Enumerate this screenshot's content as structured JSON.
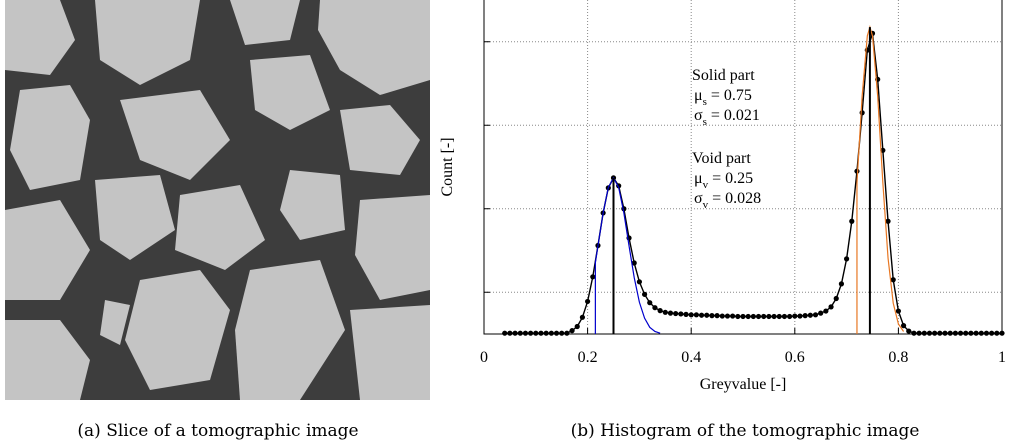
{
  "image_panel": {
    "caption": "(a) Slice of a tomographic image"
  },
  "chart_data": {
    "type": "histogram-fit",
    "caption": "(b) Histogram of the tomographic image",
    "xlabel": "Greyvalue [-]",
    "ylabel": "Count [-]",
    "xlim": [
      0,
      1
    ],
    "xticks": [
      0,
      0.2,
      0.4,
      0.6,
      0.8,
      1
    ],
    "ylim": [
      0,
      8
    ],
    "yticks": [
      1,
      3,
      5,
      7
    ],
    "grid": true,
    "series": [
      {
        "color": "#000000",
        "style": "line-dots",
        "x": [
          0.04,
          0.05,
          0.06,
          0.07,
          0.08,
          0.09,
          0.1,
          0.11,
          0.12,
          0.13,
          0.14,
          0.15,
          0.16,
          0.17,
          0.18,
          0.19,
          0.2,
          0.21,
          0.22,
          0.23,
          0.24,
          0.25,
          0.26,
          0.27,
          0.28,
          0.29,
          0.3,
          0.31,
          0.32,
          0.33,
          0.34,
          0.35,
          0.36,
          0.37,
          0.38,
          0.39,
          0.4,
          0.41,
          0.42,
          0.43,
          0.44,
          0.45,
          0.46,
          0.47,
          0.48,
          0.49,
          0.5,
          0.51,
          0.52,
          0.53,
          0.54,
          0.55,
          0.56,
          0.57,
          0.58,
          0.59,
          0.6,
          0.61,
          0.62,
          0.63,
          0.64,
          0.65,
          0.66,
          0.67,
          0.68,
          0.69,
          0.7,
          0.71,
          0.72,
          0.73,
          0.74,
          0.75,
          0.76,
          0.77,
          0.78,
          0.79,
          0.8,
          0.81,
          0.82,
          0.83,
          0.84,
          0.85,
          0.86,
          0.87,
          0.88,
          0.89,
          0.9,
          0.91,
          0.92,
          0.93,
          0.94,
          0.95,
          0.96,
          0.97,
          0.98,
          0.99,
          1.0
        ],
        "values": [
          0.02,
          0.02,
          0.02,
          0.02,
          0.02,
          0.02,
          0.02,
          0.02,
          0.02,
          0.02,
          0.02,
          0.02,
          0.02,
          0.08,
          0.18,
          0.4,
          0.78,
          1.37,
          2.12,
          2.9,
          3.5,
          3.74,
          3.55,
          3.0,
          2.3,
          1.7,
          1.25,
          0.95,
          0.75,
          0.63,
          0.56,
          0.52,
          0.5,
          0.49,
          0.48,
          0.47,
          0.46,
          0.46,
          0.45,
          0.45,
          0.44,
          0.44,
          0.43,
          0.43,
          0.43,
          0.42,
          0.42,
          0.42,
          0.42,
          0.42,
          0.42,
          0.42,
          0.42,
          0.42,
          0.42,
          0.42,
          0.43,
          0.43,
          0.44,
          0.45,
          0.46,
          0.5,
          0.55,
          0.65,
          0.85,
          1.2,
          1.8,
          2.7,
          3.9,
          5.3,
          6.8,
          7.2,
          6.1,
          4.4,
          2.7,
          1.3,
          0.55,
          0.2,
          0.07,
          0.02,
          0.02,
          0.02,
          0.02,
          0.02,
          0.02,
          0.02,
          0.02,
          0.02,
          0.02,
          0.02,
          0.02,
          0.02,
          0.02,
          0.02,
          0.02,
          0.02,
          0.02
        ]
      },
      {
        "color": "#0000cc",
        "style": "line",
        "x": [
          0.215,
          0.215,
          0.22,
          0.23,
          0.24,
          0.25,
          0.26,
          0.27,
          0.28,
          0.29,
          0.3,
          0.31,
          0.32,
          0.33,
          0.34
        ],
        "values": [
          0,
          1.71,
          2.11,
          2.9,
          3.51,
          3.74,
          3.51,
          2.9,
          2.11,
          1.35,
          0.76,
          0.38,
          0.16,
          0.06,
          0.02
        ]
      },
      {
        "color": "#e87722",
        "style": "line",
        "x": [
          0.72,
          0.72,
          0.73,
          0.74,
          0.745,
          0.75,
          0.76,
          0.77,
          0.78,
          0.79,
          0.8,
          0.81
        ],
        "values": [
          0,
          3.62,
          5.7,
          7.14,
          7.35,
          7.14,
          5.7,
          3.62,
          1.82,
          0.74,
          0.24,
          0.06
        ]
      }
    ],
    "mean_lines": [
      {
        "x": 0.25,
        "y": 3.74
      },
      {
        "x": 0.745,
        "y": 7.35
      }
    ],
    "annotations": [
      {
        "title": "Solid part",
        "mu": {
          "symbol": "μ",
          "sub": "s",
          "text": " = 0.75"
        },
        "sigma": {
          "symbol": "σ",
          "sub": "s",
          "text": " = 0.021"
        }
      },
      {
        "title": "Void part",
        "mu": {
          "symbol": "μ",
          "sub": "v",
          "text": " = 0.25"
        },
        "sigma": {
          "symbol": "σ",
          "sub": "v",
          "text": " = 0.028"
        }
      }
    ]
  }
}
